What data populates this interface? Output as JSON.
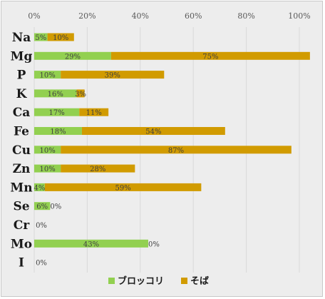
{
  "chart_data": {
    "type": "bar",
    "orientation": "horizontal",
    "stacked": true,
    "xlim": [
      0,
      100
    ],
    "x_ticks": [
      "0%",
      "20%",
      "40%",
      "60%",
      "80%",
      "100%"
    ],
    "axis_position": "top",
    "grid": true,
    "legend_placement": "bottom",
    "categories": [
      "Na",
      "Mg",
      "P",
      "K",
      "Ca",
      "Fe",
      "Cu",
      "Zn",
      "Mn",
      "Se",
      "Cr",
      "Mo",
      "I"
    ],
    "series": [
      {
        "name": "ブロッコリ",
        "color": "#92d050",
        "values": [
          5,
          29,
          10,
          16,
          17,
          18,
          10,
          10,
          4,
          6,
          0,
          43,
          0
        ],
        "labels": [
          "5%",
          "29%",
          "10%",
          "16%",
          "17%",
          "18%",
          "10%",
          "10%",
          "4%",
          "6%",
          "0%",
          "43%",
          "0%"
        ]
      },
      {
        "name": "そば",
        "color": "#d19b00",
        "values": [
          10,
          75,
          39,
          3,
          11,
          54,
          87,
          28,
          59,
          0,
          0,
          0,
          0
        ],
        "labels": [
          "10%",
          "75%",
          "39%",
          "3%",
          "11%",
          "54%",
          "87%",
          "28%",
          "59%",
          "0%",
          "",
          "0%",
          ""
        ]
      }
    ]
  }
}
